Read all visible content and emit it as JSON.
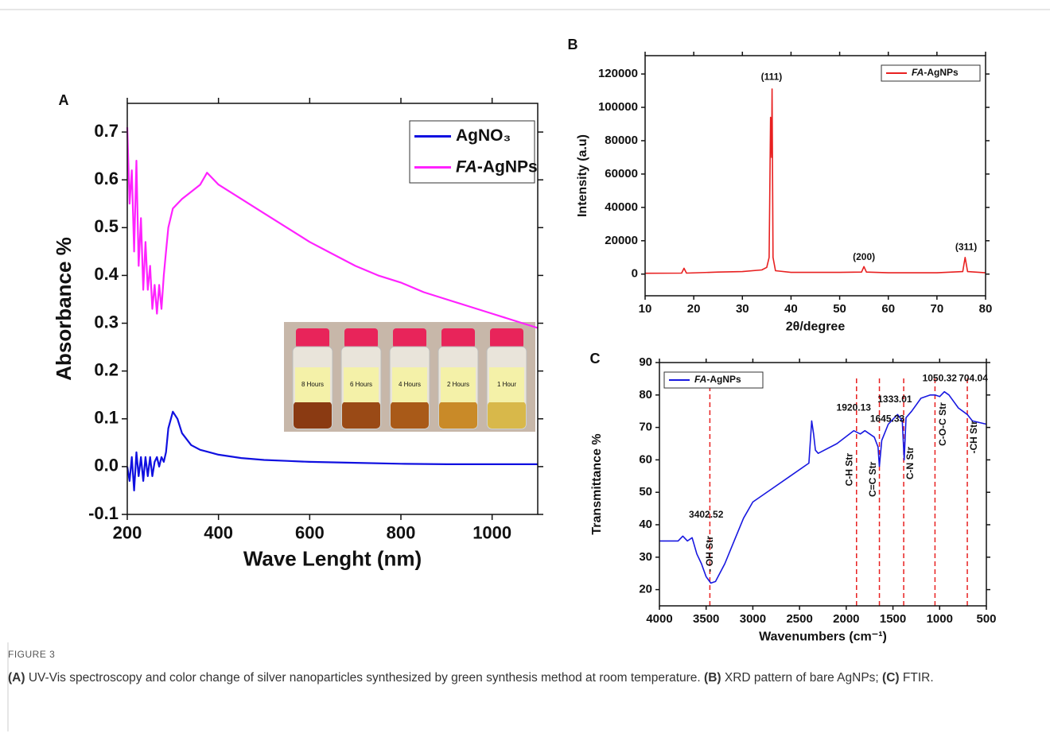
{
  "figure_label": "FIGURE 3",
  "caption": [
    "(A)",
    " UV-Vis spectroscopy and color change of silver nanoparticles synthesized by green synthesis method at room temperature. ",
    "(B)",
    " XRD pattern of bare AgNPs; ",
    "(C)",
    " FTIR."
  ],
  "chart_data": [
    {
      "type": "line",
      "panel": "A",
      "xlabel": "Wave Lenght (nm)",
      "ylabel": "Absorbance %",
      "xlim": [
        200,
        1100
      ],
      "xticks": [
        200,
        400,
        600,
        800,
        1000
      ],
      "ylim": [
        -0.1,
        0.76
      ],
      "yticks": [
        -0.1,
        0.0,
        0.1,
        0.2,
        0.3,
        0.4,
        0.5,
        0.6,
        0.7
      ],
      "legend": "upper-right",
      "series": [
        {
          "name": "AgNO₃",
          "color": "#1010e0",
          "x": [
            200,
            205,
            210,
            215,
            220,
            225,
            230,
            235,
            240,
            245,
            250,
            255,
            260,
            265,
            270,
            275,
            280,
            285,
            290,
            300,
            310,
            320,
            340,
            360,
            380,
            400,
            450,
            500,
            550,
            600,
            700,
            800,
            900,
            1000,
            1100
          ],
          "values": [
            0.0,
            -0.03,
            0.02,
            -0.05,
            0.03,
            -0.02,
            0.02,
            -0.03,
            0.02,
            -0.02,
            0.02,
            -0.02,
            0.01,
            0.02,
            0.0,
            0.02,
            0.01,
            0.03,
            0.08,
            0.115,
            0.1,
            0.07,
            0.045,
            0.035,
            0.03,
            0.025,
            0.018,
            0.014,
            0.012,
            0.01,
            0.008,
            0.006,
            0.005,
            0.005,
            0.005
          ]
        },
        {
          "name": "FA-AgNPs",
          "color": "#ff22ff",
          "x": [
            200,
            205,
            210,
            215,
            220,
            225,
            230,
            235,
            240,
            245,
            250,
            255,
            260,
            265,
            270,
            275,
            280,
            285,
            290,
            300,
            320,
            340,
            360,
            375,
            400,
            450,
            500,
            550,
            600,
            650,
            700,
            750,
            800,
            850,
            900,
            950,
            1000,
            1050,
            1100
          ],
          "values": [
            0.71,
            0.55,
            0.62,
            0.45,
            0.64,
            0.42,
            0.52,
            0.37,
            0.47,
            0.37,
            0.42,
            0.33,
            0.38,
            0.32,
            0.38,
            0.33,
            0.4,
            0.45,
            0.5,
            0.54,
            0.56,
            0.575,
            0.59,
            0.615,
            0.59,
            0.56,
            0.53,
            0.5,
            0.47,
            0.445,
            0.42,
            0.4,
            0.385,
            0.365,
            0.35,
            0.335,
            0.32,
            0.305,
            0.29
          ]
        }
      ],
      "inset_labels": [
        "8 Hours",
        "6 Hours",
        "4 Hours",
        "2 Hours",
        "1 Hour"
      ]
    },
    {
      "type": "line",
      "panel": "B",
      "xlabel": "2θ/degree",
      "ylabel": "Intensity (a.u)",
      "xlim": [
        10,
        80
      ],
      "xticks": [
        10,
        20,
        30,
        40,
        50,
        60,
        70,
        80
      ],
      "ylim": [
        -13000,
        131000
      ],
      "yticks": [
        0,
        20000,
        40000,
        60000,
        80000,
        100000,
        120000
      ],
      "legend": "upper-right",
      "series": [
        {
          "name": "FA-AgNPs",
          "color": "#e82020",
          "x": [
            10,
            17.5,
            18,
            18.5,
            25,
            30,
            34,
            35,
            35.5,
            35.8,
            36,
            36.1,
            36.3,
            36.8,
            40,
            50,
            54.5,
            55,
            55.5,
            60,
            70,
            75.3,
            75.8,
            76.3,
            80
          ],
          "values": [
            500,
            600,
            3500,
            600,
            1200,
            1500,
            2500,
            4000,
            10000,
            94000,
            70000,
            111000,
            10000,
            2000,
            1000,
            1000,
            1200,
            4500,
            1200,
            800,
            800,
            1500,
            10000,
            1500,
            800
          ]
        }
      ],
      "annotations": [
        {
          "text": "(111)",
          "x": 36,
          "y": 118000
        },
        {
          "text": "(200)",
          "x": 55,
          "y": 10000
        },
        {
          "text": "(311)",
          "x": 76,
          "y": 16000
        }
      ]
    },
    {
      "type": "line",
      "panel": "C",
      "xlabel": "Wavenumbers (cm⁻¹)",
      "ylabel": "Transmittance %",
      "xlim": [
        4000,
        500
      ],
      "xticks": [
        4000,
        3500,
        3000,
        2500,
        2000,
        1500,
        1000,
        500
      ],
      "ylim": [
        15,
        90
      ],
      "yticks": [
        20,
        30,
        40,
        50,
        60,
        70,
        80,
        90
      ],
      "legend": "upper-left",
      "series": [
        {
          "name": "FA-AgNPs",
          "color": "#1818e0",
          "x": [
            4000,
            3800,
            3750,
            3700,
            3650,
            3600,
            3550,
            3500,
            3450,
            3400,
            3300,
            3200,
            3100,
            3000,
            2800,
            2600,
            2400,
            2370,
            2350,
            2330,
            2300,
            2100,
            1920,
            1850,
            1800,
            1700,
            1660,
            1645,
            1620,
            1550,
            1450,
            1400,
            1380,
            1360,
            1300,
            1200,
            1100,
            1050,
            1000,
            950,
            900,
            800,
            704,
            650,
            500
          ],
          "values": [
            35,
            35,
            36.5,
            35,
            36,
            31,
            28,
            24,
            22,
            22.5,
            28,
            35,
            42,
            47,
            51,
            55,
            59,
            72,
            68,
            63,
            62,
            65,
            69,
            68,
            69,
            67,
            64,
            58,
            66,
            71,
            74,
            72,
            60,
            73,
            75,
            79,
            80,
            80,
            79.5,
            81,
            80,
            76,
            74,
            72,
            71
          ]
        }
      ],
      "vlines": {
        "color": "#e82020",
        "x": [
          3460,
          1890,
          1645,
          1385,
          1050,
          704
        ]
      },
      "annotations": [
        {
          "text": "3402.52",
          "x": 3500,
          "y": 43
        },
        {
          "text": "- OH Str",
          "x": 3455,
          "y": 31,
          "rotate": true
        },
        {
          "text": "1920.13",
          "x": 1920,
          "y": 76
        },
        {
          "text": "1645.33",
          "x": 1560,
          "y": 72.5
        },
        {
          "text": "1333.01",
          "x": 1480,
          "y": 78.5
        },
        {
          "text": "1050.32",
          "x": 1000,
          "y": 85
        },
        {
          "text": "704.04",
          "x": 640,
          "y": 85
        },
        {
          "text": "C-H Str",
          "x": 1960,
          "y": 57,
          "rotate": true
        },
        {
          "text": "C=C Str",
          "x": 1710,
          "y": 54,
          "rotate": true
        },
        {
          "text": "C-N Str",
          "x": 1310,
          "y": 59,
          "rotate": true
        },
        {
          "text": "C-O-C Str",
          "x": 960,
          "y": 71,
          "rotate": true
        },
        {
          "text": "-CH Str",
          "x": 630,
          "y": 67,
          "rotate": true
        }
      ]
    }
  ]
}
